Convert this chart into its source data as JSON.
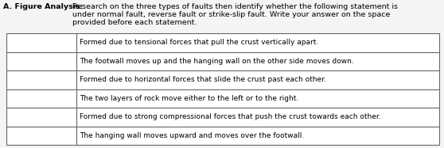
{
  "title_prefix": "A. Figure Analysis: ",
  "title_body": "Research on the three types of faults then identify whether the following statement is\n              under normal fault, reverse fault or strike-slip fault. Write your answer on the space\n              provided before each statement.",
  "rows": [
    "Formed due to tensional forces that pull the crust vertically apart.",
    "The footwall moves up and the hanging wall on the other side moves down.",
    "Formed due to horizontal forces that slide the crust past each other.",
    "The two layers of rock move either to the left or to the right.",
    "Formed due to strong compressional forces that push the crust towards each other.",
    "The hanging wall moves upward and moves over the footwall."
  ],
  "bg_color": "#f5f5f5",
  "border_color": "#666666",
  "text_color": "#000000",
  "title_fontsize": 6.8,
  "row_fontsize": 6.5,
  "fig_width": 5.58,
  "fig_height": 1.87,
  "dpi": 100
}
